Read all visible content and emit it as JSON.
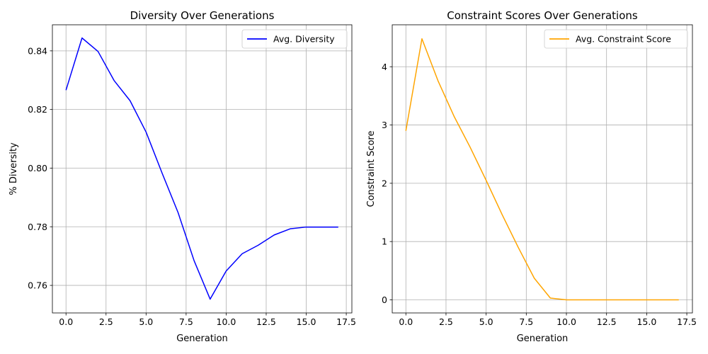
{
  "chart_data": [
    {
      "type": "line",
      "title": "Diversity Over Generations",
      "xlabel": "Generation",
      "ylabel": "% Diversity",
      "xlim": [
        -0.85,
        17.85
      ],
      "ylim": [
        0.7506,
        0.8489
      ],
      "xticks": [
        0.0,
        2.5,
        5.0,
        7.5,
        10.0,
        12.5,
        15.0,
        17.5
      ],
      "xtick_labels": [
        "0.0",
        "2.5",
        "5.0",
        "7.5",
        "10.0",
        "12.5",
        "15.0",
        "17.5"
      ],
      "yticks": [
        0.76,
        0.78,
        0.8,
        0.82,
        0.84
      ],
      "ytick_labels": [
        "0.76",
        "0.78",
        "0.80",
        "0.82",
        "0.84"
      ],
      "grid": true,
      "legend": "top-right",
      "series": [
        {
          "name": "Avg. Diversity",
          "color": "#0000ff",
          "x": [
            0,
            1,
            2,
            3,
            4,
            5,
            6,
            7,
            8,
            9,
            10,
            11,
            12,
            13,
            14,
            15,
            16,
            17
          ],
          "y": [
            0.8266,
            0.8444,
            0.8398,
            0.8299,
            0.823,
            0.8123,
            0.7983,
            0.7848,
            0.7684,
            0.7553,
            0.7649,
            0.7708,
            0.7737,
            0.7772,
            0.7793,
            0.7799,
            0.7799,
            0.7799
          ]
        }
      ]
    },
    {
      "type": "line",
      "title": "Constraint Scores Over Generations",
      "xlabel": "Generation",
      "ylabel": "Constraint Score",
      "xlim": [
        -0.85,
        17.85
      ],
      "ylim": [
        -0.225,
        4.72
      ],
      "xticks": [
        0.0,
        2.5,
        5.0,
        7.5,
        10.0,
        12.5,
        15.0,
        17.5
      ],
      "xtick_labels": [
        "0.0",
        "2.5",
        "5.0",
        "7.5",
        "10.0",
        "12.5",
        "15.0",
        "17.5"
      ],
      "yticks": [
        0,
        1,
        2,
        3,
        4
      ],
      "ytick_labels": [
        "0",
        "1",
        "2",
        "3",
        "4"
      ],
      "grid": true,
      "legend": "top-right",
      "series": [
        {
          "name": "Avg. Constraint Score",
          "color": "#ffa500",
          "x": [
            0,
            1,
            2,
            3,
            4,
            5,
            6,
            7,
            8,
            9,
            10,
            11,
            12,
            13,
            14,
            15,
            16,
            17
          ],
          "y": [
            2.9,
            4.48,
            3.76,
            3.15,
            2.62,
            2.05,
            1.46,
            0.9,
            0.37,
            0.03,
            0.0,
            0.0,
            0.0,
            0.0,
            0.0,
            0.0,
            0.0,
            0.0
          ]
        }
      ]
    }
  ]
}
